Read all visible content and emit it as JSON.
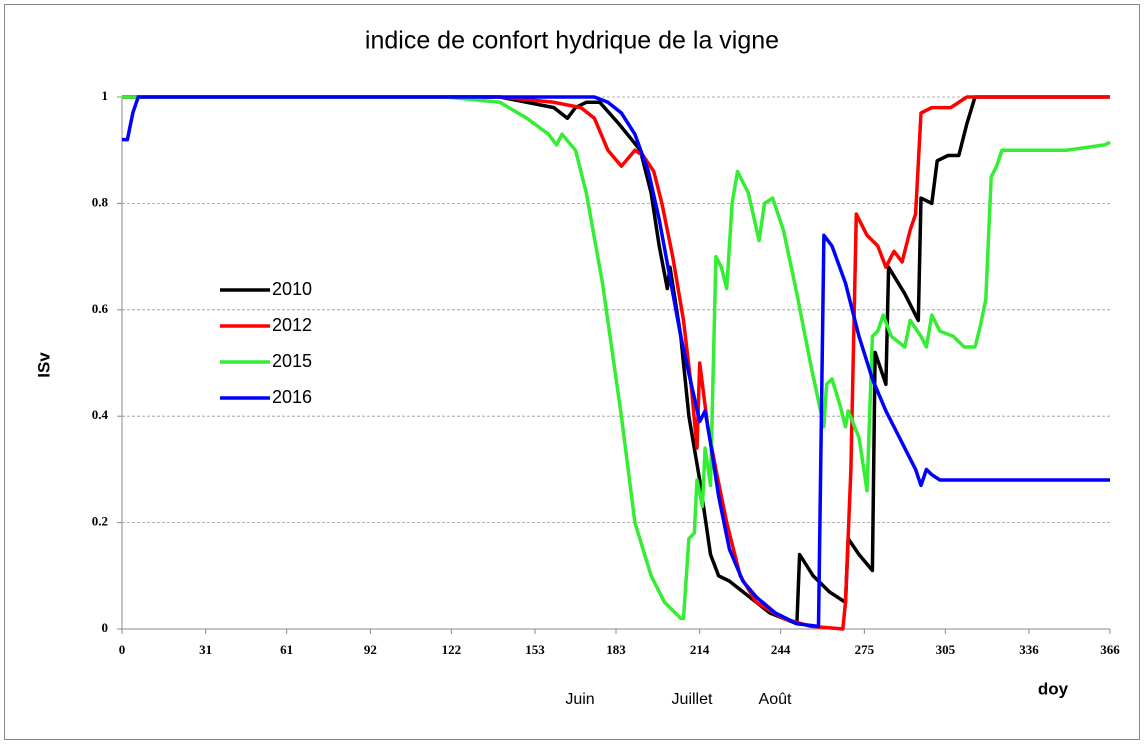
{
  "chart_data": {
    "type": "line",
    "title": "indice de confort hydrique de la vigne",
    "x_label": "doy",
    "y_label": "ISv",
    "annotations": [
      "Juin",
      "Juillet",
      "Août"
    ],
    "xlim": [
      0,
      366
    ],
    "xticks": [
      0,
      31,
      61,
      92,
      122,
      153,
      183,
      214,
      244,
      275,
      305,
      336,
      366
    ],
    "ylim": [
      0,
      1
    ],
    "yticks": [
      0,
      0.2,
      0.4,
      0.6,
      0.8,
      1
    ],
    "grid": true,
    "series": [
      {
        "name": "2010",
        "color": "#000000",
        "x": [
          0,
          140,
          160,
          165,
          168,
          172,
          177,
          184,
          192,
          196,
          199,
          202,
          203,
          207,
          210,
          214,
          218,
          221,
          225,
          240,
          250,
          251,
          256,
          262,
          268,
          269,
          273,
          278,
          279,
          283,
          284,
          290,
          295,
          296,
          300,
          302,
          306,
          310,
          313,
          316,
          366
        ],
        "values": [
          1,
          1,
          0.98,
          0.96,
          0.98,
          0.99,
          0.99,
          0.95,
          0.9,
          0.82,
          0.72,
          0.64,
          0.68,
          0.55,
          0.4,
          0.28,
          0.14,
          0.1,
          0.09,
          0.03,
          0.01,
          0.14,
          0.1,
          0.07,
          0.05,
          0.17,
          0.14,
          0.11,
          0.52,
          0.46,
          0.68,
          0.63,
          0.58,
          0.81,
          0.8,
          0.88,
          0.89,
          0.89,
          0.95,
          1,
          1
        ]
      },
      {
        "name": "2012",
        "color": "#ff0000",
        "x": [
          0,
          140,
          160,
          170,
          175,
          180,
          185,
          190,
          193,
          197,
          200,
          204,
          208,
          211,
          213,
          214,
          217,
          220,
          224,
          229,
          235,
          245,
          255,
          267,
          268,
          270,
          272,
          276,
          280,
          283,
          286,
          289,
          292,
          294,
          296,
          300,
          307,
          313,
          366
        ],
        "values": [
          1,
          1,
          0.99,
          0.98,
          0.96,
          0.9,
          0.87,
          0.9,
          0.89,
          0.86,
          0.8,
          0.7,
          0.58,
          0.45,
          0.34,
          0.5,
          0.38,
          0.3,
          0.2,
          0.1,
          0.05,
          0.02,
          0.005,
          0,
          0.05,
          0.3,
          0.78,
          0.74,
          0.72,
          0.68,
          0.71,
          0.69,
          0.75,
          0.78,
          0.97,
          0.98,
          0.98,
          1,
          1
        ]
      },
      {
        "name": "2015",
        "color": "#33ee33",
        "x": [
          0,
          120,
          140,
          150,
          158,
          161,
          163,
          168,
          172,
          178,
          185,
          190,
          196,
          201,
          207,
          208,
          210,
          212,
          213,
          215,
          216,
          218,
          220,
          222,
          224,
          226,
          228,
          232,
          236,
          238,
          241,
          245,
          250,
          255,
          260,
          261,
          263,
          266,
          268,
          269,
          273,
          276,
          278,
          280,
          282,
          285,
          290,
          292,
          296,
          298,
          300,
          303,
          308,
          312,
          316,
          318,
          320,
          322,
          324,
          326,
          350,
          364,
          366
        ],
        "values": [
          1,
          1,
          0.99,
          0.96,
          0.93,
          0.91,
          0.93,
          0.9,
          0.82,
          0.65,
          0.4,
          0.2,
          0.1,
          0.05,
          0.02,
          0.02,
          0.17,
          0.18,
          0.28,
          0.23,
          0.34,
          0.27,
          0.7,
          0.68,
          0.64,
          0.8,
          0.86,
          0.82,
          0.73,
          0.8,
          0.81,
          0.75,
          0.63,
          0.5,
          0.38,
          0.46,
          0.47,
          0.42,
          0.38,
          0.41,
          0.36,
          0.26,
          0.55,
          0.56,
          0.59,
          0.55,
          0.53,
          0.58,
          0.55,
          0.53,
          0.59,
          0.56,
          0.55,
          0.53,
          0.53,
          0.57,
          0.62,
          0.85,
          0.87,
          0.9,
          0.9,
          0.91,
          0.915
        ]
      },
      {
        "name": "2016",
        "color": "#0000ff",
        "x": [
          0,
          2,
          4,
          6,
          175,
          180,
          185,
          190,
          195,
          199,
          203,
          207,
          210,
          214,
          216,
          218,
          221,
          225,
          230,
          235,
          242,
          250,
          258,
          260,
          263,
          268,
          273,
          278,
          283,
          288,
          292,
          294,
          296,
          298,
          300,
          303,
          366
        ],
        "values": [
          0.92,
          0.92,
          0.97,
          1,
          1,
          0.99,
          0.97,
          0.93,
          0.86,
          0.77,
          0.66,
          0.55,
          0.48,
          0.39,
          0.41,
          0.35,
          0.25,
          0.15,
          0.09,
          0.06,
          0.03,
          0.01,
          0.005,
          0.74,
          0.72,
          0.65,
          0.55,
          0.47,
          0.41,
          0.36,
          0.32,
          0.3,
          0.27,
          0.3,
          0.29,
          0.28,
          0.28
        ]
      }
    ]
  }
}
